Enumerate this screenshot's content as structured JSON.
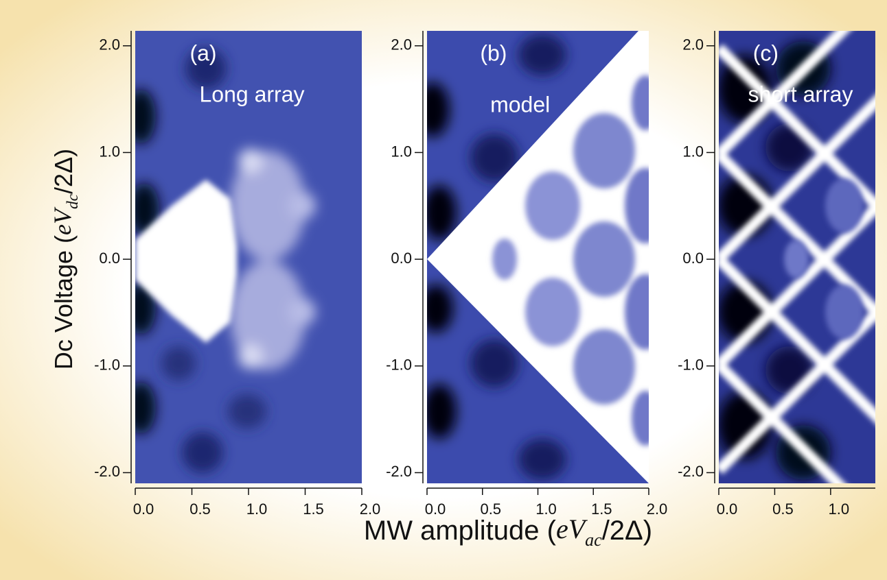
{
  "chart_data": [
    {
      "type": "heatmap",
      "panel_label": "(a)",
      "annotation": "Long array",
      "xlim": [
        0,
        2
      ],
      "xticks": [
        {
          "value": 0,
          "label": "0.0"
        },
        {
          "value": 0.5,
          "label": "0.5"
        },
        {
          "value": 1,
          "label": "1.0"
        },
        {
          "value": 1.5,
          "label": "1.5"
        },
        {
          "value": 2,
          "label": "2.0"
        }
      ],
      "ylim": [
        -2.1,
        2.14
      ],
      "yticks": [
        {
          "value": 2,
          "label": "2.0"
        },
        {
          "value": 1,
          "label": "1.0"
        },
        {
          "value": 0,
          "label": "0.0"
        },
        {
          "value": -1,
          "label": "-1.0"
        },
        {
          "value": -2,
          "label": "-2.0"
        }
      ],
      "ylabel": [
        "Dc Voltage (",
        "eV",
        "dc",
        "/2Δ)"
      ]
    },
    {
      "type": "heatmap",
      "panel_label": "(b)",
      "annotation": "model",
      "xlim": [
        0,
        2
      ],
      "xticks": [
        {
          "value": 0,
          "label": "0.0"
        },
        {
          "value": 0.5,
          "label": "0.5"
        },
        {
          "value": 1,
          "label": "1.0"
        },
        {
          "value": 1.5,
          "label": "1.5"
        },
        {
          "value": 2,
          "label": "2.0"
        }
      ],
      "ylim": [
        -2.1,
        2.14
      ],
      "yticks": [
        {
          "value": 2,
          "label": "2.0"
        },
        {
          "value": 1,
          "label": "1.0"
        },
        {
          "value": 0,
          "label": "0.0"
        },
        {
          "value": -1,
          "label": "-1.0"
        },
        {
          "value": -2,
          "label": "-2.0"
        }
      ],
      "xlabel": [
        "MW amplitude (",
        "eV",
        "ac",
        "/2Δ)"
      ]
    },
    {
      "type": "heatmap",
      "panel_label": "(c)",
      "annotation": "short array",
      "xlim": [
        0,
        1.4
      ],
      "xticks": [
        {
          "value": 0,
          "label": "0.0"
        },
        {
          "value": 0.5,
          "label": "0.5"
        },
        {
          "value": 1,
          "label": "1.0"
        }
      ],
      "ylim": [
        -2.1,
        2.14
      ],
      "yticks": [
        {
          "value": 2,
          "label": "2.0"
        },
        {
          "value": 1,
          "label": "1.0"
        },
        {
          "value": 0,
          "label": "0.0"
        },
        {
          "value": -1,
          "label": "-1.0"
        },
        {
          "value": -2,
          "label": "-2.0"
        }
      ]
    }
  ]
}
